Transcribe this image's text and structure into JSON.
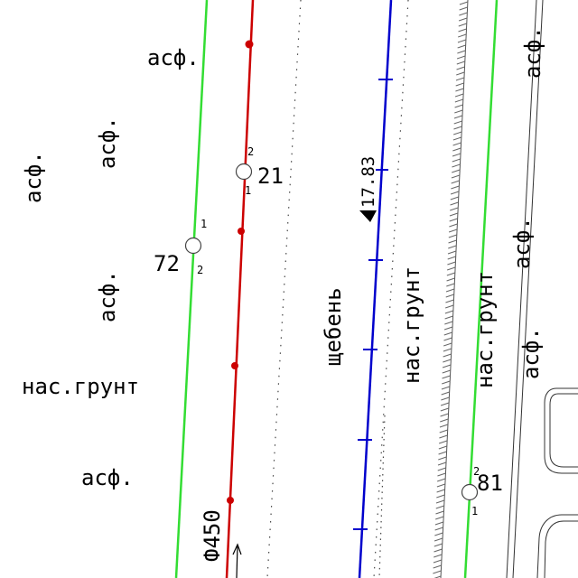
{
  "colors": {
    "green_line": "#33dd33",
    "red_line": "#cc0000",
    "blue_line": "#0000cc",
    "background": "#ffffff"
  },
  "labels": {
    "asph": "асф.",
    "gravel": "щебень",
    "soil": "нас.грунт",
    "elevation": "17.83",
    "pipe": "Ф450"
  },
  "points": {
    "p21": {
      "number": "21",
      "a": "2",
      "b": "1"
    },
    "p72": {
      "number": "72",
      "a": "1",
      "b": "2"
    },
    "p81": {
      "number": "81",
      "a": "2",
      "b": "1"
    }
  },
  "icons": {
    "elevation_marker": "down-triangle-icon",
    "flow_arrow": "up-arrow-icon"
  }
}
